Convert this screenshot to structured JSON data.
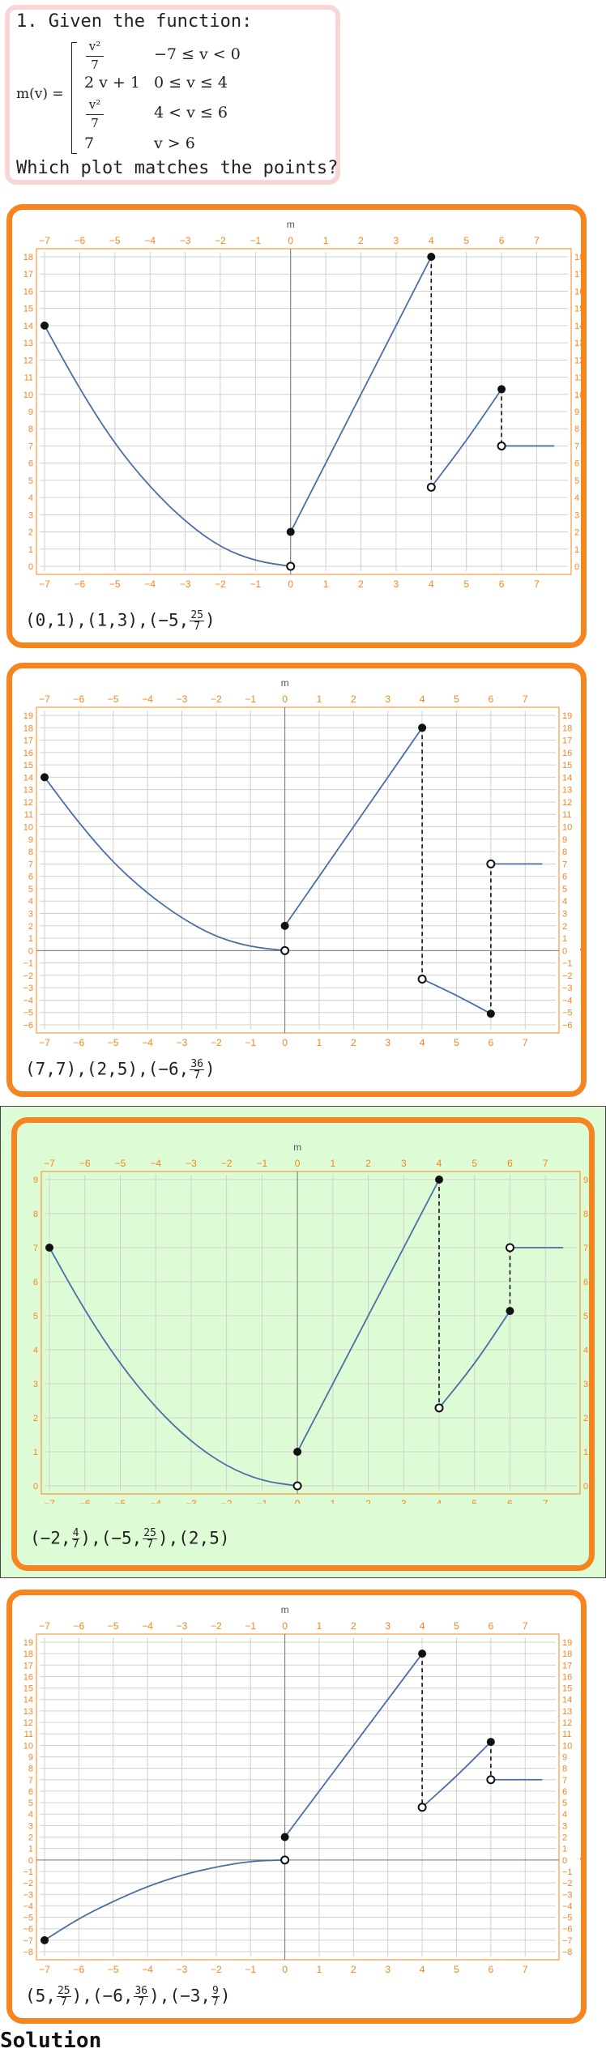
{
  "question": {
    "line1": "1. Given the function:",
    "fname": "m(v) =",
    "cases": [
      {
        "num": "v²",
        "den": "7",
        "cond": "−7 ≤ v < 0"
      },
      {
        "expr": "2 v + 1",
        "cond": "0 ≤ v ≤ 4"
      },
      {
        "num": "v²",
        "den": "7",
        "cond": "4 < v ≤ 6"
      },
      {
        "expr": "7",
        "cond": "v > 6"
      }
    ],
    "prompt": "Which plot matches the points?"
  },
  "options": [
    {
      "correct": false,
      "points_label": [
        [
          "(0,1)"
        ],
        [
          "(1,3)"
        ],
        [
          "(−5,",
          "25",
          "7",
          ")"
        ]
      ],
      "chart_data": {
        "type": "line",
        "xlabel": "",
        "ylabel": "m",
        "xlim": [
          -7,
          7
        ],
        "ylim": [
          0,
          18
        ],
        "xticks": [
          -7,
          -6,
          -5,
          -4,
          -3,
          -2,
          -1,
          0,
          1,
          2,
          3,
          4,
          5,
          6,
          7
        ],
        "series": [
          {
            "x": [
              -7,
              -6,
              -5,
              -4,
              -3,
              -2,
              -1,
              0
            ],
            "y": [
              14,
              10.3,
              7.1,
              4.6,
              2.6,
              1.1,
              0.3,
              0
            ]
          },
          {
            "x": [
              0,
              4
            ],
            "y": [
              2,
              18
            ]
          },
          {
            "x": [
              4,
              5,
              6
            ],
            "y": [
              4.6,
              7.3,
              10.3
            ]
          },
          {
            "x": [
              6,
              7.5
            ],
            "y": [
              7,
              7
            ]
          }
        ],
        "filled_points": [
          [
            -7,
            14
          ],
          [
            0,
            2
          ],
          [
            4,
            18
          ],
          [
            6,
            10.3
          ]
        ],
        "open_points": [
          [
            0,
            0
          ],
          [
            4,
            4.6
          ],
          [
            6,
            7
          ]
        ],
        "dashed": [
          [
            4,
            18,
            4,
            4.6
          ],
          [
            6,
            10.3,
            6,
            7
          ]
        ]
      }
    },
    {
      "correct": false,
      "points_label": [
        [
          "(7,7)"
        ],
        [
          "(2,5)"
        ],
        [
          "(−6,",
          "36",
          "7",
          ")"
        ]
      ],
      "chart_data": {
        "type": "line",
        "xlabel": "v",
        "ylabel": "m",
        "xlim": [
          -7,
          7
        ],
        "ylim": [
          -6,
          19
        ],
        "xticks": [
          -7,
          -6,
          -5,
          -4,
          -3,
          -2,
          -1,
          0,
          1,
          2,
          3,
          4,
          5,
          6,
          7
        ],
        "series": [
          {
            "x": [
              -7,
              -6,
              -5,
              -4,
              -3,
              -2,
              -1,
              0
            ],
            "y": [
              14,
              10.3,
              7.1,
              4.6,
              2.6,
              1.1,
              0.3,
              0
            ]
          },
          {
            "x": [
              0,
              4
            ],
            "y": [
              2,
              18
            ]
          },
          {
            "x": [
              4,
              5,
              6
            ],
            "y": [
              -2.3,
              -3.6,
              -5.1
            ]
          },
          {
            "x": [
              6,
              7.5
            ],
            "y": [
              7,
              7
            ]
          }
        ],
        "filled_points": [
          [
            -7,
            14
          ],
          [
            0,
            2
          ],
          [
            4,
            18
          ],
          [
            6,
            -5.1
          ]
        ],
        "open_points": [
          [
            0,
            0
          ],
          [
            4,
            -2.3
          ],
          [
            6,
            7
          ]
        ],
        "dashed": [
          [
            4,
            18,
            4,
            -2.3
          ],
          [
            6,
            -5.1,
            6,
            7
          ]
        ]
      }
    },
    {
      "correct": true,
      "points_label": [
        [
          "(−2,",
          "4",
          "7",
          ")"
        ],
        [
          "(−5,",
          "25",
          "7",
          ")"
        ],
        [
          "(2,5)"
        ]
      ],
      "chart_data": {
        "type": "line",
        "xlabel": "",
        "ylabel": "m",
        "xlim": [
          -7,
          7
        ],
        "ylim": [
          0,
          9
        ],
        "xticks": [
          -7,
          -6,
          -5,
          -4,
          -3,
          -2,
          -1,
          0,
          1,
          2,
          3,
          4,
          5,
          6,
          7
        ],
        "series": [
          {
            "x": [
              -7,
              -6,
              -5,
              -4,
              -3,
              -2,
              -1,
              0
            ],
            "y": [
              7,
              5.14,
              3.57,
              2.29,
              1.29,
              0.57,
              0.14,
              0
            ]
          },
          {
            "x": [
              0,
              4
            ],
            "y": [
              1,
              9
            ]
          },
          {
            "x": [
              4,
              5,
              6
            ],
            "y": [
              2.29,
              3.57,
              5.14
            ]
          },
          {
            "x": [
              6,
              7.5
            ],
            "y": [
              7,
              7
            ]
          }
        ],
        "filled_points": [
          [
            -7,
            7
          ],
          [
            0,
            1
          ],
          [
            4,
            9
          ],
          [
            6,
            5.14
          ]
        ],
        "open_points": [
          [
            0,
            0
          ],
          [
            4,
            2.29
          ],
          [
            6,
            7
          ]
        ],
        "dashed": [
          [
            4,
            9,
            4,
            2.29
          ],
          [
            6,
            5.14,
            6,
            7
          ]
        ]
      }
    },
    {
      "correct": false,
      "points_label": [
        [
          "(5,",
          "25",
          "7",
          ")"
        ],
        [
          "(−6,",
          "36",
          "7",
          ")"
        ],
        [
          "(−3,",
          "9",
          "7",
          ")"
        ]
      ],
      "chart_data": {
        "type": "line",
        "xlabel": "v",
        "ylabel": "m",
        "xlim": [
          -7,
          7
        ],
        "ylim": [
          -8,
          19
        ],
        "xticks": [
          -7,
          -6,
          -5,
          -4,
          -3,
          -2,
          -1,
          0,
          1,
          2,
          3,
          4,
          5,
          6,
          7
        ],
        "series": [
          {
            "x": [
              -7,
              -6,
              -5,
              -4,
              -3,
              -2,
              -1,
              0
            ],
            "y": [
              -7,
              -5.1,
              -3.6,
              -2.3,
              -1.3,
              -0.6,
              -0.1,
              0
            ]
          },
          {
            "x": [
              0,
              4
            ],
            "y": [
              2,
              18
            ]
          },
          {
            "x": [
              4,
              5,
              6
            ],
            "y": [
              4.6,
              7.3,
              10.3
            ]
          },
          {
            "x": [
              6,
              7.5
            ],
            "y": [
              7,
              7
            ]
          }
        ],
        "filled_points": [
          [
            -7,
            -7
          ],
          [
            0,
            2
          ],
          [
            4,
            18
          ],
          [
            6,
            10.3
          ]
        ],
        "open_points": [
          [
            0,
            0
          ],
          [
            4,
            4.6
          ],
          [
            6,
            7
          ]
        ],
        "dashed": [
          [
            4,
            18,
            4,
            4.6
          ],
          [
            6,
            10.3,
            6,
            7
          ]
        ]
      }
    }
  ],
  "colors": {
    "accent": "#f6841f",
    "curve": "#4a6fa5",
    "grid": "#d0d0d0",
    "correct_bg": "#ddfcd6",
    "question_border": "#f9d6d6"
  },
  "solution_label": "Solution"
}
